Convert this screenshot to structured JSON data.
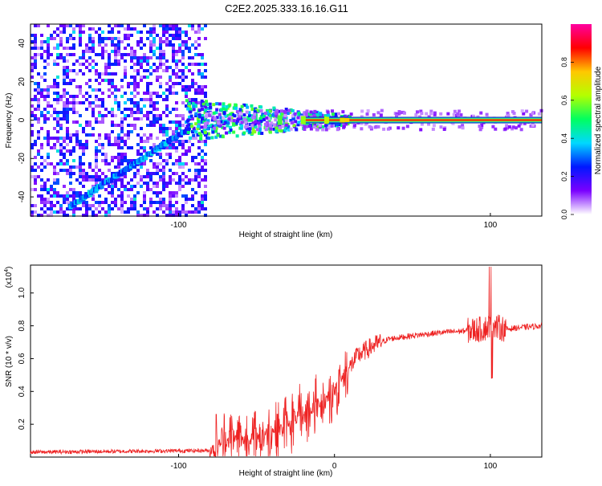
{
  "title": "C2E2.2025.333.16.16.G11",
  "chart_data": [
    {
      "type": "heatmap",
      "title": "C2E2.2025.333.16.16.G11",
      "xlabel": "Height of straight line (km)",
      "ylabel": "Frequency (Hz)",
      "xlim": [
        -195,
        133
      ],
      "ylim": [
        -50,
        50
      ],
      "xticks": [
        -100,
        100
      ],
      "yticks": [
        -40,
        -20,
        0,
        20,
        40
      ],
      "colorbar": {
        "label": "Normalized spectral amplitude",
        "range": [
          0,
          1
        ],
        "ticks": [
          "0.0",
          "0.2",
          "0.4",
          "0.6",
          "0.8"
        ],
        "colors": [
          "#ffffff",
          "#7a00ff",
          "#0018ff",
          "#00d8ff",
          "#00ff60",
          "#b4ff00",
          "#ffc800",
          "#ff0000",
          "#ff00a0"
        ]
      },
      "features": {
        "noisy_region_km": [
          -195,
          -83
        ],
        "chirp_line": {
          "from": [
            -170,
            -45
          ],
          "to": [
            -95,
            -5
          ]
        },
        "carrier_frequency_hz": 0
      }
    },
    {
      "type": "line",
      "xlabel": "Height of straight line (km)",
      "ylabel": "SNR (10 * v/v)",
      "y_multiplier": "(x10",
      "y_multiplier_exp": "4",
      "xlim": [
        -195,
        133
      ],
      "ylim": [
        0,
        1.17
      ],
      "xticks": [
        -100,
        0,
        100
      ],
      "yticks": [
        0.2,
        0.4,
        0.6,
        0.8,
        1.0
      ],
      "series": [
        {
          "name": "SNR",
          "color": "#ee2222"
        }
      ],
      "profile": {
        "x": [
          -195,
          -80,
          -75,
          -65,
          -55,
          -45,
          -35,
          -25,
          -15,
          -5,
          0,
          5,
          10,
          15,
          25,
          35,
          50,
          70,
          85,
          95,
          100,
          110,
          120,
          133
        ],
        "values": [
          0.03,
          0.04,
          0.08,
          0.12,
          0.1,
          0.14,
          0.18,
          0.22,
          0.28,
          0.36,
          0.4,
          0.48,
          0.55,
          0.62,
          0.68,
          0.72,
          0.74,
          0.76,
          0.77,
          0.78,
          0.8,
          0.78,
          0.79,
          0.8
        ]
      }
    }
  ]
}
